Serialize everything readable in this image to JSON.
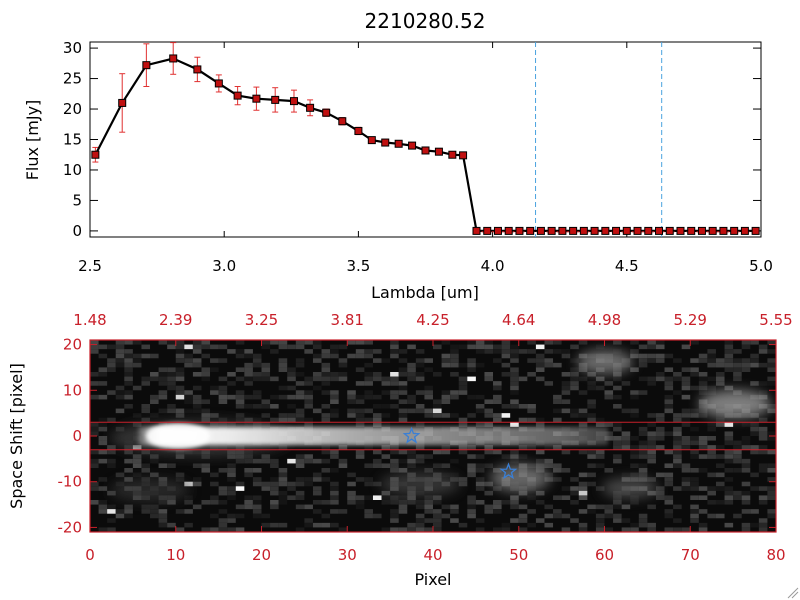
{
  "chart_data": [
    {
      "type": "line",
      "title": "2210280.52",
      "xlabel": "Lambda [um]",
      "ylabel": "Flux [mJy]",
      "xlim": [
        2.5,
        5.0
      ],
      "ylim": [
        -1,
        31
      ],
      "x_ticks": [
        "2.5",
        "3.0",
        "3.5",
        "4.0",
        "4.5",
        "5.0"
      ],
      "y_ticks": [
        "0",
        "5",
        "10",
        "15",
        "20",
        "25",
        "30"
      ],
      "series": [
        {
          "x": [
            2.52,
            2.62,
            2.71,
            2.81,
            2.9,
            2.98,
            3.05,
            3.12,
            3.19,
            3.26,
            3.32,
            3.38,
            3.44,
            3.5,
            3.55,
            3.6,
            3.65,
            3.7,
            3.75,
            3.8,
            3.85,
            3.89,
            3.94,
            3.98,
            4.02,
            4.06,
            4.1,
            4.14,
            4.18,
            4.22,
            4.26,
            4.3,
            4.34,
            4.38,
            4.42,
            4.46,
            4.5,
            4.54,
            4.58,
            4.62,
            4.66,
            4.7,
            4.74,
            4.78,
            4.82,
            4.86,
            4.9,
            4.94,
            4.98
          ],
          "values": [
            12.5,
            21.0,
            27.2,
            28.3,
            26.5,
            24.2,
            22.2,
            21.7,
            21.5,
            21.3,
            20.2,
            19.4,
            18.0,
            16.4,
            14.9,
            14.5,
            14.3,
            14.0,
            13.2,
            13.0,
            12.5,
            12.4,
            0,
            0,
            0,
            0,
            0,
            0,
            0,
            0,
            0,
            0,
            0,
            0,
            0,
            0,
            0,
            0,
            0,
            0,
            0,
            0,
            0,
            0,
            0,
            0,
            0,
            0,
            0
          ],
          "errors": [
            1.2,
            4.8,
            3.5,
            2.6,
            2.0,
            1.4,
            1.5,
            1.9,
            2.0,
            1.8,
            1.3,
            0.6,
            0.6,
            0.6,
            0.5,
            0.4,
            0.4,
            0.4,
            0.4,
            0.3,
            0.3,
            0.3,
            0,
            0,
            0,
            0,
            0,
            0,
            0,
            0,
            0,
            0,
            0,
            0,
            0,
            0,
            0,
            0,
            0,
            0,
            0,
            0,
            0,
            0,
            0,
            0,
            0,
            0,
            0
          ]
        }
      ],
      "vlines": [
        4.16,
        4.63
      ],
      "colors": {
        "line": "#000000",
        "marker_fill": "#c01010",
        "errorbar": "#e03030",
        "vline": "#4aa3df"
      },
      "grid": false,
      "legend": "none"
    },
    {
      "type": "heatmap",
      "xlabel": "Pixel",
      "ylabel": "Space Shift [pixel]",
      "xlim": [
        0,
        80
      ],
      "ylim": [
        -21,
        21
      ],
      "x_ticks": [
        "0",
        "10",
        "20",
        "30",
        "40",
        "50",
        "60",
        "70",
        "80"
      ],
      "y_ticks": [
        "-20",
        "-10",
        "0",
        "10",
        "20"
      ],
      "top_ticks": [
        "1.48",
        "2.39",
        "3.25",
        "3.81",
        "4.25",
        "4.64",
        "4.98",
        "5.29",
        "5.55"
      ],
      "hlines": [
        3,
        -3
      ],
      "stars": [
        {
          "x": 37.5,
          "y": 0
        },
        {
          "x": 48.8,
          "y": -7.8
        }
      ],
      "colors": {
        "frame": "#c8202a",
        "star": "#3a7fd5",
        "hline": "#c8202a"
      }
    }
  ]
}
